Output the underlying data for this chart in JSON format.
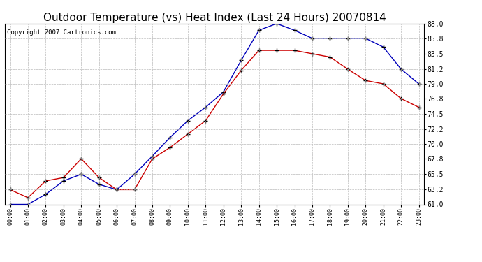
{
  "title": "Outdoor Temperature (vs) Heat Index (Last 24 Hours) 20070814",
  "copyright": "Copyright 2007 Cartronics.com",
  "x_labels": [
    "00:00",
    "01:00",
    "02:00",
    "03:00",
    "04:00",
    "05:00",
    "06:00",
    "07:00",
    "08:00",
    "09:00",
    "10:00",
    "11:00",
    "12:00",
    "13:00",
    "14:00",
    "15:00",
    "16:00",
    "17:00",
    "18:00",
    "19:00",
    "20:00",
    "21:00",
    "22:00",
    "23:00"
  ],
  "blue_data": [
    61.0,
    61.0,
    62.5,
    64.5,
    65.5,
    64.0,
    63.2,
    65.5,
    68.2,
    71.0,
    73.5,
    75.5,
    77.8,
    82.5,
    87.0,
    88.0,
    87.0,
    85.8,
    85.8,
    85.8,
    85.8,
    84.5,
    81.2,
    79.0
  ],
  "red_data": [
    63.2,
    62.0,
    64.5,
    65.0,
    67.8,
    65.0,
    63.2,
    63.2,
    67.8,
    69.5,
    71.5,
    73.5,
    77.5,
    81.0,
    84.0,
    84.0,
    84.0,
    83.5,
    83.0,
    81.2,
    79.5,
    79.0,
    76.8,
    75.5
  ],
  "ylim_min": 61.0,
  "ylim_max": 88.0,
  "yticks": [
    61.0,
    63.2,
    65.5,
    67.8,
    70.0,
    72.2,
    74.5,
    76.8,
    79.0,
    81.2,
    83.5,
    85.8,
    88.0
  ],
  "blue_color": "#0000bb",
  "red_color": "#cc0000",
  "bg_color": "#ffffff",
  "plot_bg_color": "#ffffff",
  "grid_color": "#bbbbbb",
  "title_color": "#000000",
  "title_fontsize": 11,
  "copyright_fontsize": 6.5,
  "figwidth": 6.9,
  "figheight": 3.75,
  "dpi": 100
}
